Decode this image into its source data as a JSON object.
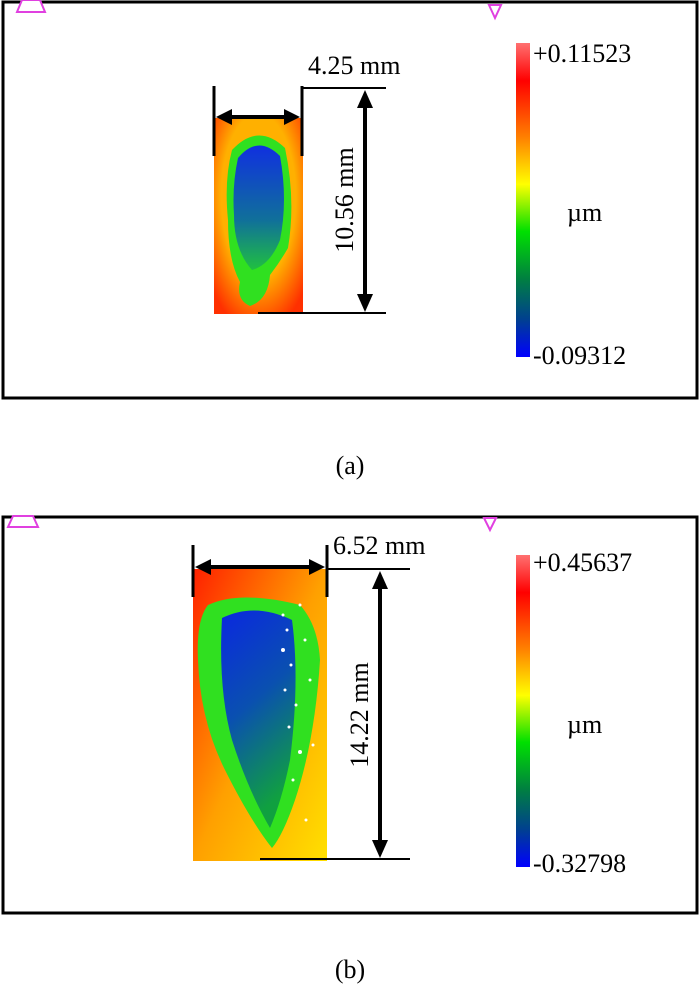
{
  "panels": [
    {
      "caption": "(a)",
      "width_label": "4.25 mm",
      "height_label": "10.56 mm",
      "colorbar": {
        "max": "+0.11523",
        "min": "-0.09312",
        "unit": "µm"
      }
    },
    {
      "caption": "(b)",
      "width_label": "6.52 mm",
      "height_label": "14.22 mm",
      "colorbar": {
        "max": "+0.45637",
        "min": "-0.32798",
        "unit": "µm"
      }
    }
  ],
  "colors": {
    "marker": "#e040e0",
    "low": "#0000ff",
    "high": "#ff6060"
  }
}
